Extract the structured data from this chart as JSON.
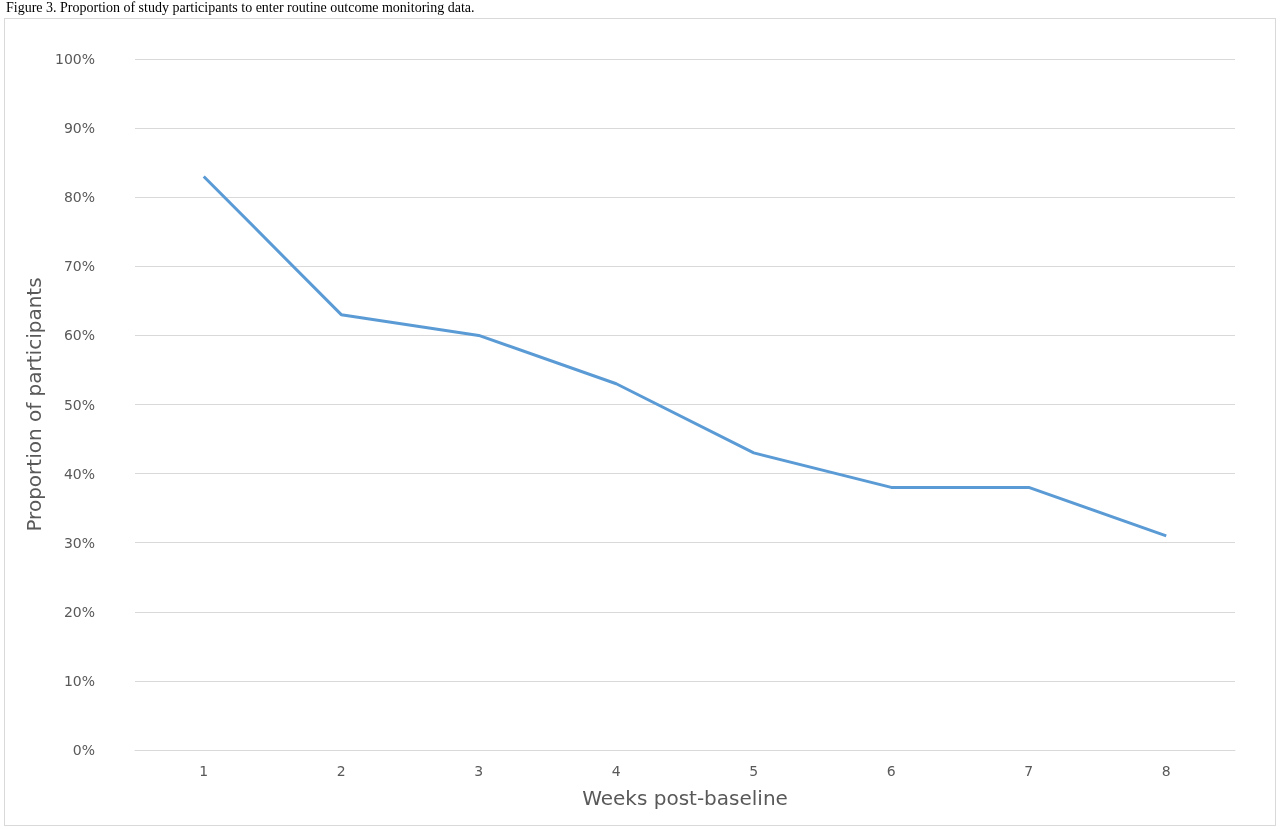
{
  "chart_data": {
    "type": "line",
    "title": "Figure 3. Proportion of study participants to enter routine outcome monitoring data.",
    "xlabel": "Weeks post-baseline",
    "ylabel": "Proportion of participants",
    "categories": [
      "1",
      "2",
      "3",
      "4",
      "5",
      "6",
      "7",
      "8"
    ],
    "series": [
      {
        "color": "#5b9bd5",
        "values": [
          83,
          63,
          60,
          53,
          43,
          38,
          38,
          31
        ]
      }
    ],
    "ylim": [
      0,
      100
    ],
    "yticks": [
      {
        "value": 0,
        "label": "0%"
      },
      {
        "value": 10,
        "label": "10%"
      },
      {
        "value": 20,
        "label": "20%"
      },
      {
        "value": 30,
        "label": "30%"
      },
      {
        "value": 40,
        "label": "40%"
      },
      {
        "value": 50,
        "label": "50%"
      },
      {
        "value": 60,
        "label": "60%"
      },
      {
        "value": 70,
        "label": "70%"
      },
      {
        "value": 80,
        "label": "80%"
      },
      {
        "value": 90,
        "label": "90%"
      },
      {
        "value": 100,
        "label": "100%"
      }
    ],
    "grid": "y",
    "marker": "none",
    "line_style": "solid"
  }
}
